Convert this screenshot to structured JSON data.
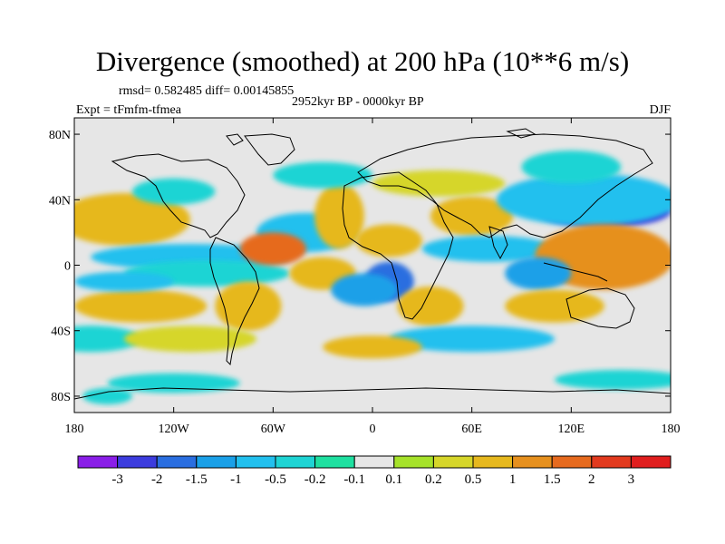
{
  "header": {
    "title": "Divergence (smoothed) at 200 hPa (10**6 m/s)",
    "stats": "rmsd= 0.582485 diff= 0.00145855",
    "time_range": "2952kyr BP - 0000kyr BP",
    "experiment": "Expt = tFmfm-tfmea",
    "season": "DJF"
  },
  "chart_data": {
    "type": "heatmap",
    "variable": "Divergence (smoothed) at 200 hPa",
    "units": "10**6 m/s",
    "x_ticks": [
      {
        "value": -180,
        "label": "180"
      },
      {
        "value": -120,
        "label": "120W"
      },
      {
        "value": -60,
        "label": "60W"
      },
      {
        "value": 0,
        "label": "0"
      },
      {
        "value": 60,
        "label": "60E"
      },
      {
        "value": 120,
        "label": "120E"
      },
      {
        "value": 180,
        "label": "180"
      }
    ],
    "y_ticks": [
      {
        "value": 80,
        "label": "80N"
      },
      {
        "value": 40,
        "label": "40N"
      },
      {
        "value": 0,
        "label": "0"
      },
      {
        "value": -40,
        "label": "40S"
      },
      {
        "value": -80,
        "label": "80S"
      }
    ],
    "xlim": [
      -180,
      180
    ],
    "ylim": [
      -90,
      90
    ],
    "colorbar": {
      "labels": [
        "-3",
        "-2",
        "-1.5",
        "-1",
        "-0.5",
        "-0.2",
        "-0.1",
        "0.1",
        "0.2",
        "0.5",
        "1",
        "1.5",
        "2",
        "3"
      ],
      "colors": [
        "#8a1ee8",
        "#3c3cde",
        "#2a6ee0",
        "#1aa0e8",
        "#22c0ee",
        "#1ed4d4",
        "#1ee0a0",
        "#e6e6e6",
        "#a6e22a",
        "#d6d62a",
        "#e6b81e",
        "#e6901e",
        "#e66a1e",
        "#e23a1e",
        "#e01e1e"
      ]
    },
    "blobs": [
      {
        "lon": -150,
        "lat": 28,
        "rlon": 26,
        "rlat": 11,
        "level": 13
      },
      {
        "lon": -150,
        "lat": 28,
        "rlon": 40,
        "rlat": 16,
        "level": 10
      },
      {
        "lon": -110,
        "lat": 5,
        "rlon": 60,
        "rlat": 8,
        "level": 4
      },
      {
        "lon": -100,
        "lat": -5,
        "rlon": 50,
        "rlat": 8,
        "level": 5
      },
      {
        "lon": -40,
        "lat": 20,
        "rlon": 30,
        "rlat": 12,
        "level": 4
      },
      {
        "lon": -30,
        "lat": -5,
        "rlon": 20,
        "rlat": 10,
        "level": 10
      },
      {
        "lon": -20,
        "lat": 30,
        "rlon": 15,
        "rlat": 20,
        "level": 10
      },
      {
        "lon": 10,
        "lat": 15,
        "rlon": 20,
        "rlat": 10,
        "level": 10
      },
      {
        "lon": 10,
        "lat": -10,
        "rlon": 15,
        "rlat": 12,
        "level": 2
      },
      {
        "lon": -5,
        "lat": -15,
        "rlon": 20,
        "rlat": 10,
        "level": 3
      },
      {
        "lon": 35,
        "lat": -25,
        "rlon": 20,
        "rlat": 12,
        "level": 10
      },
      {
        "lon": 60,
        "lat": 30,
        "rlon": 25,
        "rlat": 12,
        "level": 10
      },
      {
        "lon": 70,
        "lat": 10,
        "rlon": 40,
        "rlat": 8,
        "level": 4
      },
      {
        "lon": 140,
        "lat": 33,
        "rlon": 40,
        "rlat": 10,
        "level": 1
      },
      {
        "lon": 130,
        "lat": 40,
        "rlon": 55,
        "rlat": 16,
        "level": 4
      },
      {
        "lon": 145,
        "lat": 3,
        "rlon": 28,
        "rlat": 13,
        "level": 13
      },
      {
        "lon": 140,
        "lat": 5,
        "rlon": 42,
        "rlat": 20,
        "level": 11
      },
      {
        "lon": 100,
        "lat": -5,
        "rlon": 20,
        "rlat": 10,
        "level": 3
      },
      {
        "lon": 110,
        "lat": -25,
        "rlon": 30,
        "rlat": 10,
        "level": 10
      },
      {
        "lon": -140,
        "lat": -25,
        "rlon": 40,
        "rlat": 10,
        "level": 10
      },
      {
        "lon": -150,
        "lat": -10,
        "rlon": 30,
        "rlat": 6,
        "level": 4
      },
      {
        "lon": -75,
        "lat": -25,
        "rlon": 20,
        "rlat": 15,
        "level": 10
      },
      {
        "lon": -60,
        "lat": 10,
        "rlon": 20,
        "rlat": 10,
        "level": 12
      },
      {
        "lon": -120,
        "lat": 45,
        "rlon": 25,
        "rlat": 8,
        "level": 5
      },
      {
        "lon": -30,
        "lat": 55,
        "rlon": 30,
        "rlat": 8,
        "level": 5
      },
      {
        "lon": 40,
        "lat": 50,
        "rlon": 40,
        "rlat": 8,
        "level": 9
      },
      {
        "lon": 120,
        "lat": 60,
        "rlon": 30,
        "rlat": 10,
        "level": 5
      },
      {
        "lon": -170,
        "lat": -45,
        "rlon": 30,
        "rlat": 8,
        "level": 5
      },
      {
        "lon": 60,
        "lat": -45,
        "rlon": 50,
        "rlat": 8,
        "level": 4
      },
      {
        "lon": -110,
        "lat": -45,
        "rlon": 40,
        "rlat": 8,
        "level": 9
      },
      {
        "lon": 0,
        "lat": -50,
        "rlon": 30,
        "rlat": 7,
        "level": 10
      },
      {
        "lon": -120,
        "lat": -72,
        "rlon": 40,
        "rlat": 6,
        "level": 5
      },
      {
        "lon": 150,
        "lat": -70,
        "rlon": 40,
        "rlat": 6,
        "level": 5
      },
      {
        "lon": -160,
        "lat": -80,
        "rlon": 15,
        "rlat": 5,
        "level": 5
      }
    ]
  }
}
